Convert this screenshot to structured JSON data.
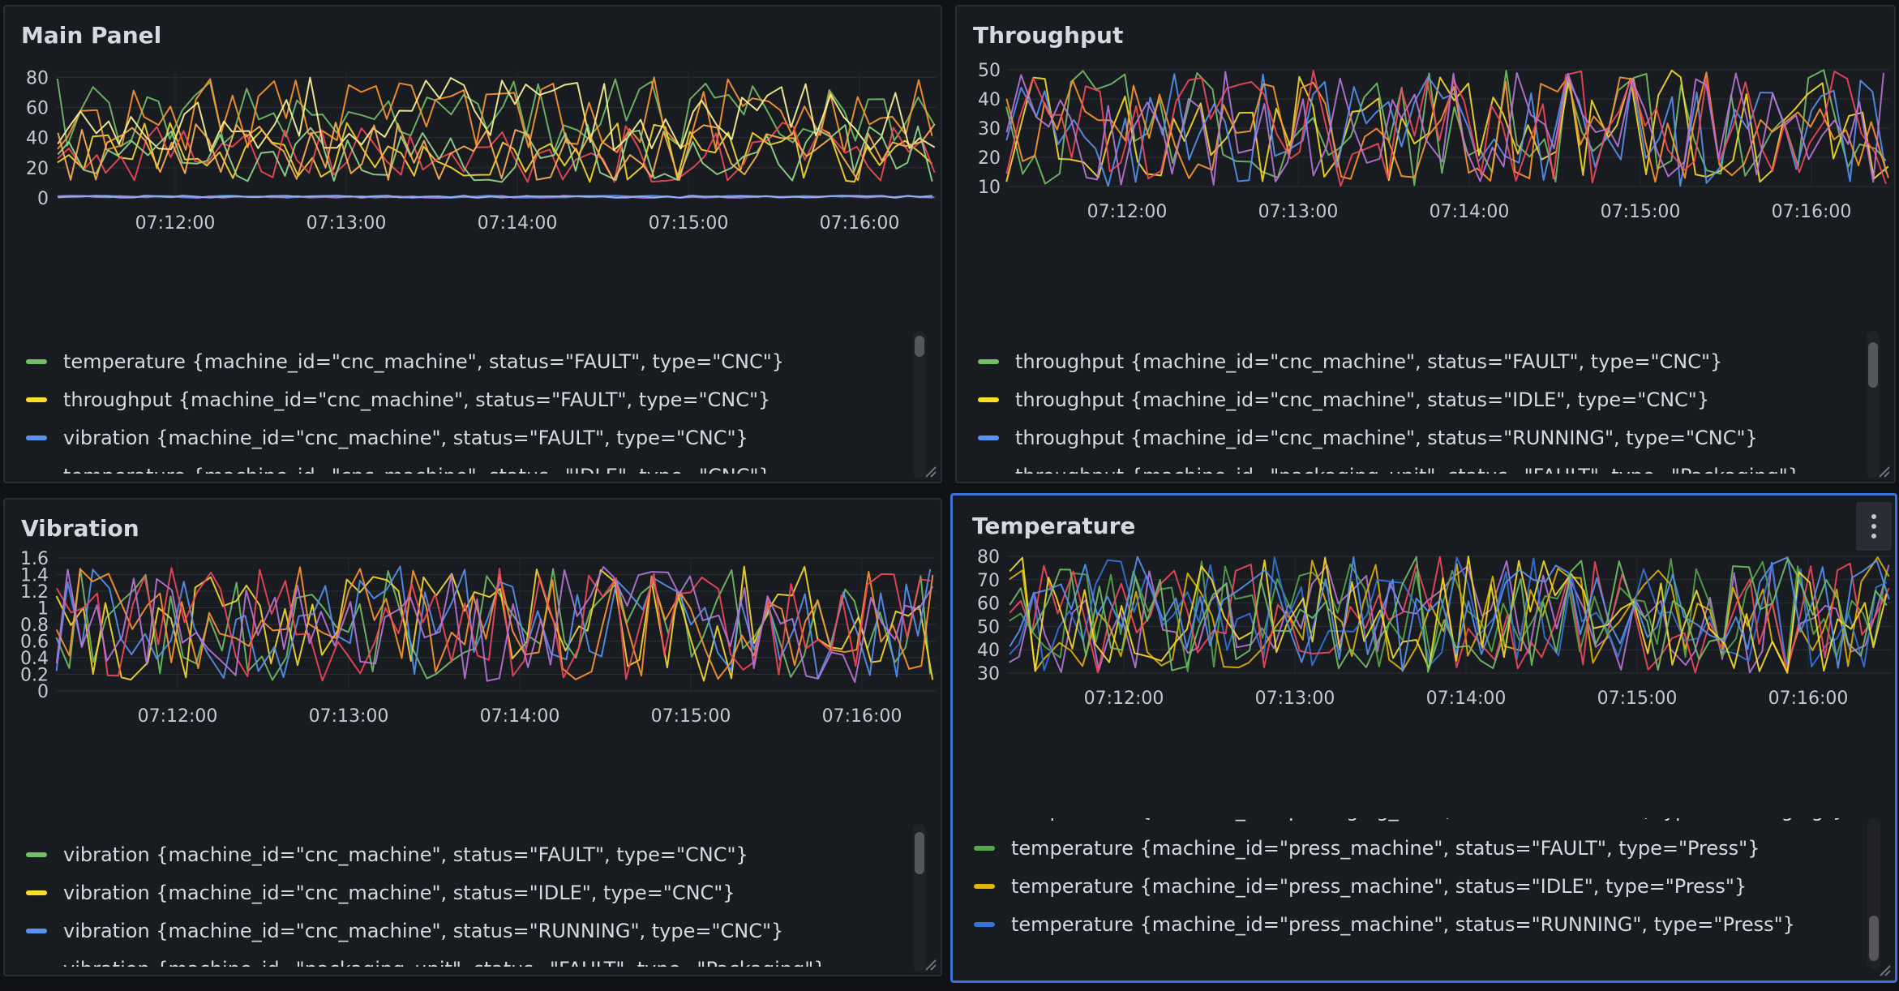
{
  "panels": [
    {
      "id": "main",
      "title": "Main Panel",
      "chart_data": {
        "type": "line",
        "title": "Main Panel",
        "x_tick_labels": [
          "07:12:00",
          "07:13:00",
          "07:14:00",
          "07:15:00",
          "07:16:00"
        ],
        "y_tick_labels": [
          "0",
          "20",
          "40",
          "60",
          "80"
        ],
        "ylim": [
          0,
          85
        ],
        "series": [
          {
            "name": "temperature {machine_id=\"cnc_machine\", status=\"FAULT\", type=\"CNC\"}",
            "color": "#73bf69",
            "lo": 30,
            "hi": 80
          },
          {
            "name": "throughput {machine_id=\"cnc_machine\", status=\"FAULT\", type=\"CNC\"}",
            "color": "#fade2a",
            "lo": 10,
            "hi": 50
          },
          {
            "name": "vibration {machine_id=\"cnc_machine\", status=\"FAULT\", type=\"CNC\"}",
            "color": "#5794f2",
            "lo": 0,
            "hi": 1.5
          },
          {
            "name": "temperature {machine_id=\"cnc_machine\", status=\"IDLE\", type=\"CNC\"}",
            "color": "#ff9830",
            "lo": 30,
            "hi": 80
          },
          {
            "name": "",
            "color": "#f2495c",
            "lo": 10,
            "hi": 50
          },
          {
            "name": "",
            "color": "#b877d9",
            "lo": 0,
            "hi": 1.5
          },
          {
            "name": "",
            "color": "#fff899",
            "lo": 30,
            "hi": 80
          },
          {
            "name": "",
            "color": "#96d98d",
            "lo": 10,
            "hi": 50
          },
          {
            "name": "",
            "color": "#ffb357",
            "lo": 10,
            "hi": 50
          },
          {
            "name": "",
            "color": "#8ab8ff",
            "lo": 0,
            "hi": 1.5
          }
        ]
      },
      "legend": [
        {
          "label": "temperature {machine_id=\"cnc_machine\", status=\"FAULT\", type=\"CNC\"}",
          "color": "#73bf69"
        },
        {
          "label": "throughput {machine_id=\"cnc_machine\", status=\"FAULT\", type=\"CNC\"}",
          "color": "#fade2a"
        },
        {
          "label": "vibration {machine_id=\"cnc_machine\", status=\"FAULT\", type=\"CNC\"}",
          "color": "#5794f2"
        },
        {
          "label": "temperature {machine_id=\"cnc_machine\", status=\"IDLE\", type=\"CNC\"}",
          "color": "#ff9830"
        }
      ]
    },
    {
      "id": "throughput",
      "title": "Throughput",
      "chart_data": {
        "type": "line",
        "title": "Throughput",
        "x_tick_labels": [
          "07:12:00",
          "07:13:00",
          "07:14:00",
          "07:15:00",
          "07:16:00"
        ],
        "y_tick_labels": [
          "10",
          "20",
          "30",
          "40",
          "50"
        ],
        "ylim": [
          10,
          50
        ],
        "series": [
          {
            "name": "throughput {machine_id=\"cnc_machine\", status=\"FAULT\", type=\"CNC\"}",
            "color": "#73bf69",
            "lo": 10,
            "hi": 50
          },
          {
            "name": "throughput {machine_id=\"cnc_machine\", status=\"IDLE\", type=\"CNC\"}",
            "color": "#fade2a",
            "lo": 10,
            "hi": 50
          },
          {
            "name": "throughput {machine_id=\"cnc_machine\", status=\"RUNNING\", type=\"CNC\"}",
            "color": "#5794f2",
            "lo": 10,
            "hi": 50
          },
          {
            "name": "throughput {machine_id=\"packaging_unit\", status=\"FAULT\", type=\"Packaging\"}",
            "color": "#ff9830",
            "lo": 10,
            "hi": 50
          },
          {
            "name": "",
            "color": "#f2495c",
            "lo": 10,
            "hi": 50
          },
          {
            "name": "",
            "color": "#b877d9",
            "lo": 10,
            "hi": 50
          }
        ]
      },
      "legend": [
        {
          "label": "throughput {machine_id=\"cnc_machine\", status=\"FAULT\", type=\"CNC\"}",
          "color": "#73bf69"
        },
        {
          "label": "throughput {machine_id=\"cnc_machine\", status=\"IDLE\", type=\"CNC\"}",
          "color": "#fade2a"
        },
        {
          "label": "throughput {machine_id=\"cnc_machine\", status=\"RUNNING\", type=\"CNC\"}",
          "color": "#5794f2"
        },
        {
          "label": "throughput {machine_id=\"packaging_unit\", status=\"FAULT\", type=\"Packaging\"}",
          "color": "#ff9830"
        }
      ]
    },
    {
      "id": "vibration",
      "title": "Vibration",
      "chart_data": {
        "type": "line",
        "title": "Vibration",
        "x_tick_labels": [
          "07:12:00",
          "07:13:00",
          "07:14:00",
          "07:15:00",
          "07:16:00"
        ],
        "y_tick_labels": [
          "0",
          "0.2",
          "0.4",
          "0.6",
          "0.8",
          "1",
          "1.2",
          "1.4",
          "1.6"
        ],
        "ylim": [
          0,
          1.6
        ],
        "series": [
          {
            "name": "vibration {machine_id=\"cnc_machine\", status=\"FAULT\", type=\"CNC\"}",
            "color": "#73bf69",
            "lo": 0.1,
            "hi": 1.5
          },
          {
            "name": "vibration {machine_id=\"cnc_machine\", status=\"IDLE\", type=\"CNC\"}",
            "color": "#fade2a",
            "lo": 0.1,
            "hi": 1.5
          },
          {
            "name": "vibration {machine_id=\"cnc_machine\", status=\"RUNNING\", type=\"CNC\"}",
            "color": "#5794f2",
            "lo": 0.1,
            "hi": 1.5
          },
          {
            "name": "vibration {machine_id=\"packaging_unit\", status=\"FAULT\", type=\"Packaging\"}",
            "color": "#ff9830",
            "lo": 0.1,
            "hi": 1.5
          },
          {
            "name": "",
            "color": "#f2495c",
            "lo": 0.1,
            "hi": 1.5
          },
          {
            "name": "",
            "color": "#b877d9",
            "lo": 0.1,
            "hi": 1.5
          }
        ]
      },
      "legend": [
        {
          "label": "vibration {machine_id=\"cnc_machine\", status=\"FAULT\", type=\"CNC\"}",
          "color": "#73bf69"
        },
        {
          "label": "vibration {machine_id=\"cnc_machine\", status=\"IDLE\", type=\"CNC\"}",
          "color": "#fade2a"
        },
        {
          "label": "vibration {machine_id=\"cnc_machine\", status=\"RUNNING\", type=\"CNC\"}",
          "color": "#5794f2"
        },
        {
          "label": "vibration {machine_id=\"packaging_unit\", status=\"FAULT\", type=\"Packaging\"}",
          "color": "#ff9830"
        }
      ]
    },
    {
      "id": "temperature",
      "title": "Temperature",
      "chart_data": {
        "type": "line",
        "title": "Temperature",
        "x_tick_labels": [
          "07:12:00",
          "07:13:00",
          "07:14:00",
          "07:15:00",
          "07:16:00"
        ],
        "y_tick_labels": [
          "30",
          "40",
          "50",
          "60",
          "70",
          "80"
        ],
        "ylim": [
          30,
          80
        ],
        "series": [
          {
            "name": "temperature {machine_id=\"packaging_unit\", status=\"RUNNING\", type=\"Packaging\"}",
            "color": "#b877d9",
            "lo": 30,
            "hi": 80
          },
          {
            "name": "temperature {machine_id=\"press_machine\", status=\"FAULT\", type=\"Press\"}",
            "color": "#56a64b",
            "lo": 30,
            "hi": 80
          },
          {
            "name": "temperature {machine_id=\"press_machine\", status=\"IDLE\", type=\"Press\"}",
            "color": "#e0b400",
            "lo": 30,
            "hi": 80
          },
          {
            "name": "temperature {machine_id=\"press_machine\", status=\"RUNNING\", type=\"Press\"}",
            "color": "#3274d9",
            "lo": 30,
            "hi": 80
          },
          {
            "name": "",
            "color": "#f2495c",
            "lo": 30,
            "hi": 80
          },
          {
            "name": "",
            "color": "#fade2a",
            "lo": 30,
            "hi": 80
          },
          {
            "name": "",
            "color": "#5794f2",
            "lo": 30,
            "hi": 80
          },
          {
            "name": "",
            "color": "#73bf69",
            "lo": 30,
            "hi": 80
          }
        ]
      },
      "legend": [
        {
          "label": "temperature {machine_id=\"packaging_unit\", status=\"RUNNING\", type=\"Packaging\"}",
          "color": "#b877d9"
        },
        {
          "label": "temperature {machine_id=\"press_machine\", status=\"FAULT\", type=\"Press\"}",
          "color": "#56a64b"
        },
        {
          "label": "temperature {machine_id=\"press_machine\", status=\"IDLE\", type=\"Press\"}",
          "color": "#e0b400"
        },
        {
          "label": "temperature {machine_id=\"press_machine\", status=\"RUNNING\", type=\"Press\"}",
          "color": "#3274d9"
        }
      ]
    }
  ]
}
